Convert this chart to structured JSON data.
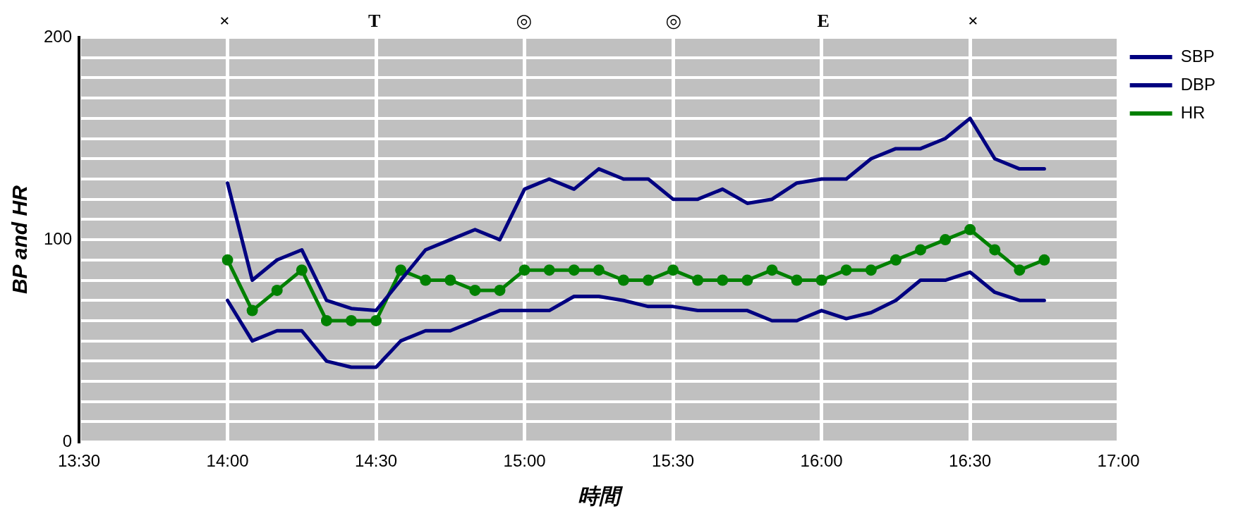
{
  "chart_data": {
    "type": "line",
    "xlabel": "時間",
    "ylabel": "BP and HR",
    "x": [
      14,
      14.0833,
      14.1667,
      14.25,
      14.3333,
      14.4167,
      14.5,
      14.5833,
      14.6667,
      14.75,
      14.8333,
      14.9167,
      15,
      15.0833,
      15.1667,
      15.25,
      15.3333,
      15.4167,
      15.5,
      15.5833,
      15.6667,
      15.75,
      15.8333,
      15.9167,
      16,
      16.0833,
      16.1667,
      16.25,
      16.3333,
      16.4167,
      16.5,
      16.5833,
      16.6667,
      16.75
    ],
    "series": [
      {
        "name": "SBP",
        "color": "#000080",
        "marker": "none",
        "values": [
          128,
          80,
          90,
          95,
          70,
          66,
          65,
          80,
          95,
          100,
          105,
          100,
          125,
          130,
          125,
          135,
          130,
          130,
          120,
          120,
          125,
          118,
          120,
          128,
          130,
          130,
          140,
          145,
          145,
          150,
          160,
          140,
          135,
          135
        ]
      },
      {
        "name": "DBP",
        "color": "#000080",
        "marker": "none",
        "values": [
          70,
          50,
          55,
          55,
          40,
          37,
          37,
          50,
          55,
          55,
          60,
          65,
          65,
          65,
          72,
          72,
          70,
          67,
          67,
          65,
          65,
          65,
          60,
          60,
          65,
          61,
          64,
          70,
          80,
          80,
          84,
          74,
          70,
          70
        ]
      },
      {
        "name": "HR",
        "color": "#008000",
        "marker": "circle",
        "values": [
          90,
          65,
          75,
          85,
          60,
          60,
          60,
          85,
          80,
          80,
          75,
          75,
          85,
          85,
          85,
          85,
          80,
          80,
          85,
          80,
          80,
          80,
          85,
          80,
          80,
          85,
          85,
          90,
          95,
          100,
          105,
          95,
          85,
          90
        ]
      }
    ],
    "xlim": [
      13.5,
      17
    ],
    "xticks": [
      {
        "value": 13.5,
        "label": "13:30"
      },
      {
        "value": 14,
        "label": "14:00"
      },
      {
        "value": 14.5,
        "label": "14:30"
      },
      {
        "value": 15,
        "label": "15:00"
      },
      {
        "value": 15.5,
        "label": "15:30"
      },
      {
        "value": 16,
        "label": "16:00"
      },
      {
        "value": 16.5,
        "label": "16:30"
      },
      {
        "value": 17,
        "label": "17:00"
      }
    ],
    "ylim": [
      0,
      200
    ],
    "yticks": [
      0,
      {
        "value": 10,
        "label": null
      },
      {
        "value": 20,
        "label": null
      },
      {
        "value": 30,
        "label": null
      },
      {
        "value": 40,
        "label": null
      },
      {
        "value": 50,
        "label": null
      },
      {
        "value": 60,
        "label": null
      },
      {
        "value": 70,
        "label": null
      },
      {
        "value": 80,
        "label": null
      },
      {
        "value": 90,
        "label": null
      },
      100,
      {
        "value": 110,
        "label": null
      },
      {
        "value": 120,
        "label": null
      },
      {
        "value": 130,
        "label": null
      },
      {
        "value": 140,
        "label": null
      },
      {
        "value": 150,
        "label": null
      },
      {
        "value": 160,
        "label": null
      },
      {
        "value": 170,
        "label": null
      },
      {
        "value": 180,
        "label": null
      },
      {
        "value": 190,
        "label": null
      },
      200
    ],
    "grid": true,
    "legend": "top right",
    "line_style": "solid",
    "annotations": [
      "×",
      "T",
      "◎",
      "◎",
      "E",
      "×"
    ]
  }
}
